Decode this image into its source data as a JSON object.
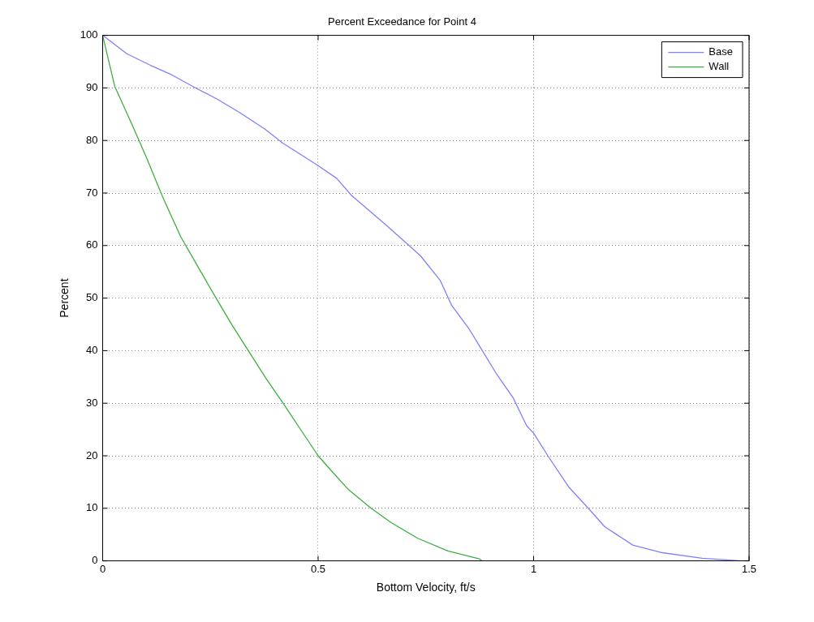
{
  "chart_data": {
    "type": "line",
    "title": "Percent Exceedance for Point 4",
    "xlabel": "Bottom Velocity, ft/s",
    "ylabel": "Percent",
    "xlim": [
      0,
      1.5
    ],
    "xticks": [
      0,
      0.5,
      1,
      1.5
    ],
    "ylim": [
      0,
      100
    ],
    "yticks": [
      0,
      10,
      20,
      30,
      40,
      50,
      60,
      70,
      80,
      90,
      100
    ],
    "grid": true,
    "legend": "top right",
    "marker": "none",
    "line_style": "solid",
    "series": [
      {
        "name": "Base",
        "color": "#7f7fff",
        "x": [
          0,
          0.056,
          0.111,
          0.16,
          0.209,
          0.265,
          0.32,
          0.376,
          0.418,
          0.5,
          0.543,
          0.578,
          0.655,
          0.71,
          0.738,
          0.783,
          0.81,
          0.849,
          0.881,
          0.913,
          0.952,
          0.984,
          1.0,
          1.033,
          1.081,
          1.127,
          1.165,
          1.23,
          1.295,
          1.391,
          1.482
        ],
        "values": [
          100,
          96.5,
          94.3,
          92.5,
          90.3,
          87.9,
          85.2,
          82.2,
          79.5,
          75.2,
          72.8,
          69.5,
          64.1,
          60.1,
          58,
          53.4,
          48.6,
          44.3,
          40,
          35.7,
          31.1,
          25.7,
          24.3,
          20,
          14.1,
          10,
          6.5,
          3,
          1.6,
          0.5,
          0
        ]
      },
      {
        "name": "Wall",
        "color": "#3fae3f",
        "x": [
          0,
          0.028,
          0.07,
          0.104,
          0.139,
          0.181,
          0.223,
          0.261,
          0.3,
          0.338,
          0.38,
          0.418,
          0.46,
          0.5,
          0.529,
          0.571,
          0.623,
          0.669,
          0.731,
          0.801,
          0.874,
          0.88
        ],
        "values": [
          100,
          90.3,
          82.7,
          76.3,
          69.3,
          61.7,
          55.7,
          50.3,
          44.9,
          40,
          34.6,
          30.1,
          24.9,
          20,
          17.3,
          13.5,
          10,
          7.3,
          4.3,
          1.9,
          0.4,
          0
        ]
      }
    ]
  }
}
